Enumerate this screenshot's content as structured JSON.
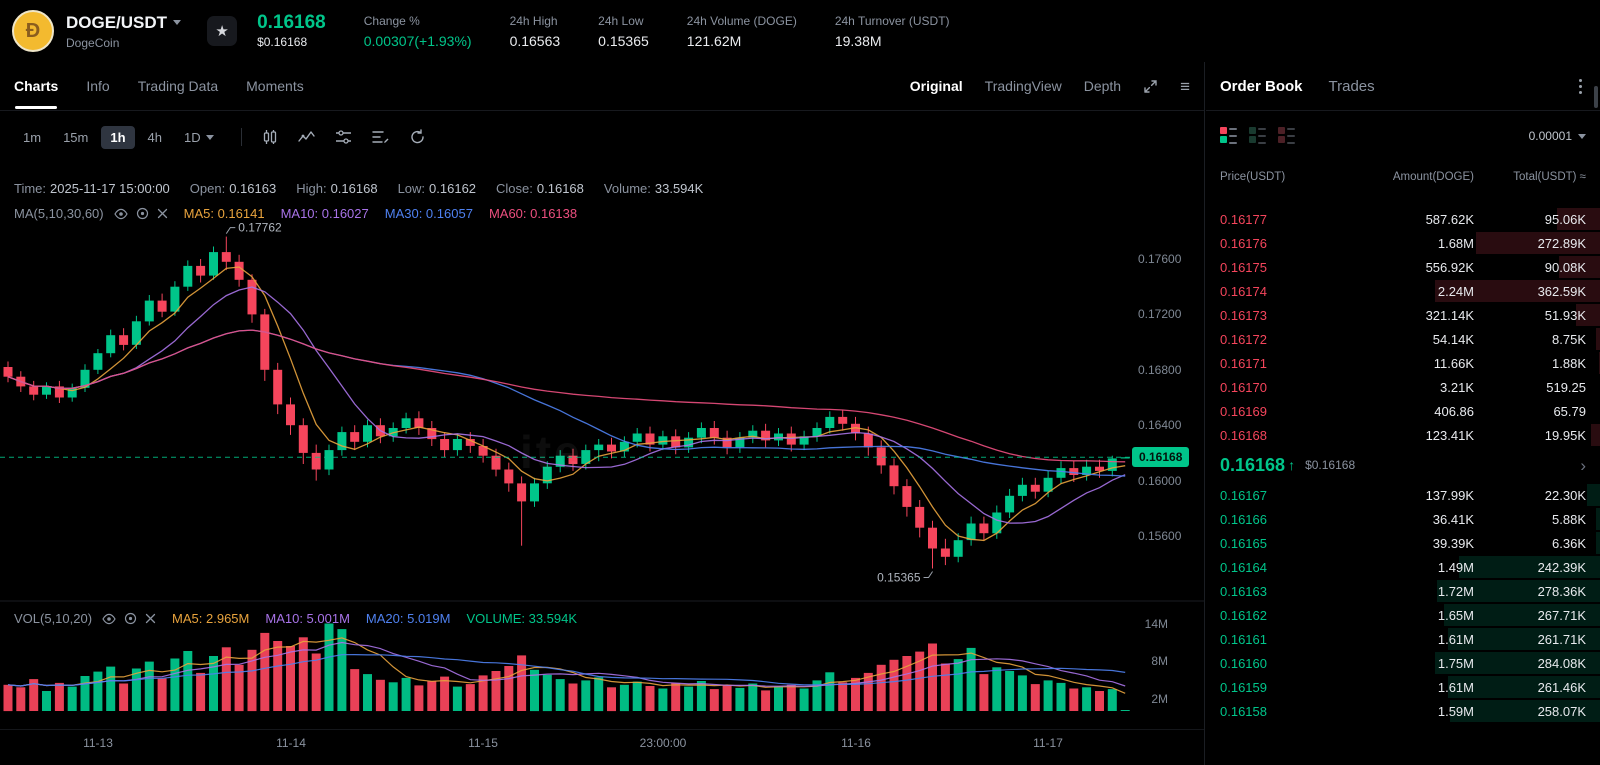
{
  "colors": {
    "green": "#00c58a",
    "red": "#f5455c",
    "ma5": "#e8a33d",
    "ma10": "#a873e8",
    "ma30": "#4f81f0",
    "ma60": "#ec4f7f",
    "coin_yellow": "#f3ba2f"
  },
  "icons": {
    "star": "★",
    "caret_down": "▾",
    "up_arrow": "↑",
    "chevron_right": "›",
    "menu": "≡",
    "coin_letter": "Ð"
  },
  "header": {
    "pair": "DOGE/USDT",
    "coin_name": "DogeCoin",
    "price": "0.16168",
    "price_usd": "$0.16168",
    "change_label": "Change %",
    "change_value": "0.00307(+1.93%)",
    "stats": [
      {
        "label": "24h High",
        "value": "0.16563"
      },
      {
        "label": "24h Low",
        "value": "0.15365"
      },
      {
        "label": "24h Volume (DOGE)",
        "value": "121.62M"
      },
      {
        "label": "24h Turnover (USDT)",
        "value": "19.38M"
      }
    ]
  },
  "chart_header": {
    "tabs": [
      {
        "label": "Charts",
        "active": true
      },
      {
        "label": "Info",
        "active": false
      },
      {
        "label": "Trading Data",
        "active": false
      },
      {
        "label": "Moments",
        "active": false
      }
    ],
    "view_tabs": [
      {
        "label": "Original",
        "active": true
      },
      {
        "label": "TradingView",
        "active": false
      },
      {
        "label": "Depth",
        "active": false
      }
    ],
    "timeframes": [
      {
        "label": "1m",
        "active": false,
        "caret": false
      },
      {
        "label": "15m",
        "active": false,
        "caret": false
      },
      {
        "label": "1h",
        "active": true,
        "caret": false
      },
      {
        "label": "4h",
        "active": false,
        "caret": false
      },
      {
        "label": "1D",
        "active": false,
        "caret": true
      }
    ]
  },
  "ohlc_items": [
    {
      "label": "Time:",
      "value": "2025-11-17 15:00:00"
    },
    {
      "label": "Open:",
      "value": "0.16163"
    },
    {
      "label": "High:",
      "value": "0.16168"
    },
    {
      "label": "Low:",
      "value": "0.16162"
    },
    {
      "label": "Close:",
      "value": "0.16168"
    },
    {
      "label": "Volume:",
      "value": "33.594K"
    }
  ],
  "ma_indicator": {
    "label": "MA(5,10,30,60)",
    "items": [
      {
        "text": "MA5: 0.16141",
        "color": "#e8a33d"
      },
      {
        "text": "MA10: 0.16027",
        "color": "#a873e8"
      },
      {
        "text": "MA30: 0.16057",
        "color": "#4f81f0"
      },
      {
        "text": "MA60: 0.16138",
        "color": "#ec4f7f"
      }
    ]
  },
  "vol_indicator": {
    "label": "VOL(5,10,20)",
    "items": [
      {
        "text": "MA5: 2.965M",
        "color": "#e8a33d"
      },
      {
        "text": "MA10: 5.001M",
        "color": "#a873e8"
      },
      {
        "text": "MA20: 5.019M",
        "color": "#4f81f0"
      },
      {
        "text": "VOLUME: 33.594K",
        "color": "#00c58a"
      }
    ]
  },
  "watermark": "ite",
  "chart_data": {
    "type": "candlestick",
    "interval": "1h",
    "price_axis_labels": [
      "0.17600",
      "0.17200",
      "0.16800",
      "0.16400",
      "0.16000",
      "0.15600"
    ],
    "price_axis_values": [
      0.176,
      0.172,
      0.168,
      0.164,
      0.16,
      0.156
    ],
    "volume_axis_labels": [
      "14M",
      "8M",
      "2M"
    ],
    "volume_axis_values": [
      14,
      8,
      2
    ],
    "x_axis_labels": [
      "11-13",
      "11-14",
      "11-15",
      "23:00:00",
      "11-16",
      "11-17"
    ],
    "x_axis_indices": [
      7,
      22,
      37,
      51,
      66,
      81
    ],
    "current_price": 0.16168,
    "current_price_label": "0.16168",
    "high_annotation": {
      "text": "0.17762",
      "index": 17
    },
    "low_annotation": {
      "text": "0.15365",
      "index": 72
    },
    "candles": [
      [
        0.1682,
        0.1686,
        0.1671,
        0.1675,
        4.2
      ],
      [
        0.1675,
        0.1679,
        0.1664,
        0.1668,
        3.8
      ],
      [
        0.1668,
        0.1672,
        0.1658,
        0.1662,
        5.1
      ],
      [
        0.1662,
        0.1671,
        0.1659,
        0.1668,
        3.2
      ],
      [
        0.1668,
        0.1672,
        0.1656,
        0.166,
        4.5
      ],
      [
        0.166,
        0.167,
        0.1657,
        0.1667,
        3.9
      ],
      [
        0.1667,
        0.1684,
        0.1664,
        0.168,
        5.6
      ],
      [
        0.168,
        0.1695,
        0.1677,
        0.1692,
        6.3
      ],
      [
        0.1692,
        0.1709,
        0.1689,
        0.1705,
        7.1
      ],
      [
        0.1705,
        0.171,
        0.1694,
        0.1698,
        4.4
      ],
      [
        0.1698,
        0.1719,
        0.1695,
        0.1715,
        6.8
      ],
      [
        0.1715,
        0.1734,
        0.1712,
        0.173,
        7.9
      ],
      [
        0.173,
        0.1735,
        0.1718,
        0.1722,
        5.2
      ],
      [
        0.1722,
        0.1744,
        0.1719,
        0.174,
        8.4
      ],
      [
        0.174,
        0.1759,
        0.1737,
        0.1755,
        9.6
      ],
      [
        0.1755,
        0.176,
        0.1743,
        0.1748,
        6.1
      ],
      [
        0.1748,
        0.1769,
        0.1745,
        0.1765,
        8.8
      ],
      [
        0.1765,
        0.17762,
        0.1752,
        0.1758,
        10.2
      ],
      [
        0.1758,
        0.1763,
        0.174,
        0.1745,
        7.4
      ],
      [
        0.1745,
        0.1749,
        0.1714,
        0.172,
        9.8
      ],
      [
        0.172,
        0.1724,
        0.1672,
        0.168,
        12.5
      ],
      [
        0.168,
        0.1685,
        0.1648,
        0.1655,
        11.2
      ],
      [
        0.1655,
        0.166,
        0.1633,
        0.164,
        10.4
      ],
      [
        0.164,
        0.1645,
        0.1612,
        0.162,
        11.8
      ],
      [
        0.162,
        0.1626,
        0.16,
        0.1608,
        9.2
      ],
      [
        0.1608,
        0.1626,
        0.1604,
        0.1622,
        14.0
      ],
      [
        0.1622,
        0.1639,
        0.1618,
        0.1635,
        13.1
      ],
      [
        0.1635,
        0.164,
        0.1622,
        0.1628,
        6.7
      ],
      [
        0.1628,
        0.1644,
        0.1624,
        0.164,
        5.9
      ],
      [
        0.164,
        0.1645,
        0.1627,
        0.1632,
        5.0
      ],
      [
        0.1632,
        0.1642,
        0.1628,
        0.1638,
        4.6
      ],
      [
        0.1638,
        0.1649,
        0.1634,
        0.1645,
        5.3
      ],
      [
        0.1645,
        0.165,
        0.1633,
        0.1638,
        4.1
      ],
      [
        0.1638,
        0.1643,
        0.1625,
        0.163,
        4.8
      ],
      [
        0.163,
        0.1635,
        0.1617,
        0.1622,
        5.5
      ],
      [
        0.1622,
        0.1634,
        0.1618,
        0.163,
        3.9
      ],
      [
        0.163,
        0.1635,
        0.162,
        0.1625,
        4.3
      ],
      [
        0.1625,
        0.163,
        0.1613,
        0.1618,
        5.7
      ],
      [
        0.1618,
        0.1623,
        0.1603,
        0.1608,
        6.4
      ],
      [
        0.1608,
        0.1613,
        0.1592,
        0.1598,
        7.2
      ],
      [
        0.1598,
        0.1603,
        0.1553,
        0.1585,
        8.9
      ],
      [
        0.1585,
        0.1602,
        0.1581,
        0.1598,
        6.6
      ],
      [
        0.1598,
        0.1614,
        0.1594,
        0.161,
        5.8
      ],
      [
        0.161,
        0.1622,
        0.1606,
        0.1618,
        5.1
      ],
      [
        0.1618,
        0.1623,
        0.1607,
        0.1612,
        4.4
      ],
      [
        0.1612,
        0.1626,
        0.1608,
        0.1622,
        4.9
      ],
      [
        0.1622,
        0.163,
        0.1614,
        0.1626,
        5.4
      ],
      [
        0.1626,
        0.1631,
        0.1616,
        0.1621,
        3.8
      ],
      [
        0.1621,
        0.1632,
        0.1617,
        0.1628,
        4.2
      ],
      [
        0.1628,
        0.1638,
        0.1624,
        0.1634,
        4.7
      ],
      [
        0.1634,
        0.1639,
        0.1621,
        0.1626,
        4.0
      ],
      [
        0.1626,
        0.1636,
        0.1622,
        0.1632,
        3.6
      ],
      [
        0.1632,
        0.1637,
        0.1619,
        0.1624,
        4.5
      ],
      [
        0.1624,
        0.1635,
        0.162,
        0.1631,
        3.9
      ],
      [
        0.1631,
        0.1642,
        0.1627,
        0.1638,
        4.8
      ],
      [
        0.1638,
        0.1643,
        0.1626,
        0.1631,
        3.5
      ],
      [
        0.1631,
        0.1636,
        0.1619,
        0.1624,
        4.1
      ],
      [
        0.1624,
        0.1635,
        0.162,
        0.1631,
        3.7
      ],
      [
        0.1631,
        0.164,
        0.1627,
        0.1636,
        4.4
      ],
      [
        0.1636,
        0.1641,
        0.1624,
        0.1629,
        3.3
      ],
      [
        0.1629,
        0.1638,
        0.1625,
        0.1634,
        3.9
      ],
      [
        0.1634,
        0.1639,
        0.1621,
        0.1626,
        4.2
      ],
      [
        0.1626,
        0.1636,
        0.1622,
        0.1632,
        3.6
      ],
      [
        0.1632,
        0.1642,
        0.1628,
        0.1638,
        4.9
      ],
      [
        0.1638,
        0.165,
        0.1634,
        0.1646,
        6.2
      ],
      [
        0.1646,
        0.1651,
        0.1636,
        0.1641,
        4.6
      ],
      [
        0.1641,
        0.1646,
        0.1629,
        0.1634,
        5.3
      ],
      [
        0.1634,
        0.1639,
        0.1618,
        0.1624,
        6.1
      ],
      [
        0.1624,
        0.1629,
        0.1605,
        0.1611,
        7.4
      ],
      [
        0.1611,
        0.1616,
        0.159,
        0.1596,
        8.2
      ],
      [
        0.1596,
        0.1601,
        0.1574,
        0.1581,
        8.8
      ],
      [
        0.1581,
        0.1586,
        0.1559,
        0.1566,
        9.5
      ],
      [
        0.1566,
        0.1571,
        0.15365,
        0.1551,
        10.8
      ],
      [
        0.1551,
        0.1558,
        0.1539,
        0.1545,
        7.6
      ],
      [
        0.1545,
        0.1562,
        0.1541,
        0.1557,
        8.3
      ],
      [
        0.1557,
        0.1574,
        0.1553,
        0.1569,
        10.1
      ],
      [
        0.1569,
        0.1574,
        0.1557,
        0.1562,
        5.9
      ],
      [
        0.1562,
        0.1582,
        0.1558,
        0.1577,
        7.0
      ],
      [
        0.1577,
        0.1594,
        0.1573,
        0.1589,
        6.4
      ],
      [
        0.1589,
        0.1602,
        0.1585,
        0.1597,
        5.7
      ],
      [
        0.1597,
        0.1602,
        0.1587,
        0.1592,
        4.3
      ],
      [
        0.1592,
        0.1607,
        0.1588,
        0.1602,
        4.9
      ],
      [
        0.1602,
        0.1614,
        0.1598,
        0.1609,
        4.5
      ],
      [
        0.1609,
        0.1614,
        0.1599,
        0.1604,
        3.6
      ],
      [
        0.1604,
        0.1615,
        0.16,
        0.161,
        3.8
      ],
      [
        0.161,
        0.1615,
        0.1602,
        0.1607,
        3.2
      ],
      [
        0.1607,
        0.1618,
        0.1603,
        0.1616,
        3.5
      ],
      [
        0.16163,
        0.16168,
        0.16162,
        0.16168,
        0.034
      ]
    ]
  },
  "order_book": {
    "tabs": [
      {
        "label": "Order Book",
        "active": true
      },
      {
        "label": "Trades",
        "active": false
      }
    ],
    "precision": "0.00001",
    "columns": [
      "Price(USDT)",
      "Amount(DOGE)",
      "Total(USDT) ≈"
    ],
    "asks": [
      [
        "0.16177",
        "587.62K",
        "95.06K"
      ],
      [
        "0.16176",
        "1.68M",
        "272.89K"
      ],
      [
        "0.16175",
        "556.92K",
        "90.08K"
      ],
      [
        "0.16174",
        "2.24M",
        "362.59K"
      ],
      [
        "0.16173",
        "321.14K",
        "51.93K"
      ],
      [
        "0.16172",
        "54.14K",
        "8.75K"
      ],
      [
        "0.16171",
        "11.66K",
        "1.88K"
      ],
      [
        "0.16170",
        "3.21K",
        "519.25"
      ],
      [
        "0.16169",
        "406.86",
        "65.79"
      ],
      [
        "0.16168",
        "123.41K",
        "19.95K"
      ]
    ],
    "last_price": {
      "price": "0.16168",
      "direction": "up",
      "usd": "$0.16168"
    },
    "bids": [
      [
        "0.16167",
        "137.99K",
        "22.30K"
      ],
      [
        "0.16166",
        "36.41K",
        "5.88K"
      ],
      [
        "0.16165",
        "39.39K",
        "6.36K"
      ],
      [
        "0.16164",
        "1.49M",
        "242.39K"
      ],
      [
        "0.16163",
        "1.72M",
        "278.36K"
      ],
      [
        "0.16162",
        "1.65M",
        "267.71K"
      ],
      [
        "0.16161",
        "1.61M",
        "261.71K"
      ],
      [
        "0.16160",
        "1.75M",
        "284.08K"
      ],
      [
        "0.16159",
        "1.61M",
        "261.46K"
      ],
      [
        "0.16158",
        "1.59M",
        "258.07K"
      ]
    ]
  }
}
